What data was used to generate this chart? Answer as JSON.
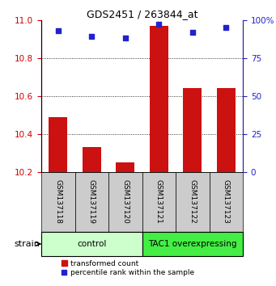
{
  "title": "GDS2451 / 263844_at",
  "samples": [
    "GSM137118",
    "GSM137119",
    "GSM137120",
    "GSM137121",
    "GSM137122",
    "GSM137123"
  ],
  "transformed_counts": [
    10.49,
    10.33,
    10.25,
    10.97,
    10.64,
    10.64
  ],
  "percentile_ranks": [
    93,
    89,
    88,
    97,
    92,
    95
  ],
  "ylim_left": [
    10.2,
    11.0
  ],
  "ylim_right": [
    0,
    100
  ],
  "yticks_left": [
    10.2,
    10.4,
    10.6,
    10.8,
    11.0
  ],
  "yticks_right": [
    0,
    25,
    50,
    75,
    100
  ],
  "ytick_right_labels": [
    "0",
    "25",
    "50",
    "75",
    "100%"
  ],
  "bar_color": "#cc1111",
  "dot_color": "#2222cc",
  "control_color": "#ccffcc",
  "tac1_color": "#44ee44",
  "sample_box_color": "#cccccc",
  "group_label": "strain",
  "legend_bar_label": "transformed count",
  "legend_dot_label": "percentile rank within the sample",
  "ylabel_left_color": "#cc0000",
  "ylabel_right_color": "#2222cc",
  "title_fontsize": 9,
  "tick_fontsize": 7.5,
  "sample_fontsize": 6.5,
  "group_fontsize": 7.5,
  "legend_fontsize": 6.5
}
